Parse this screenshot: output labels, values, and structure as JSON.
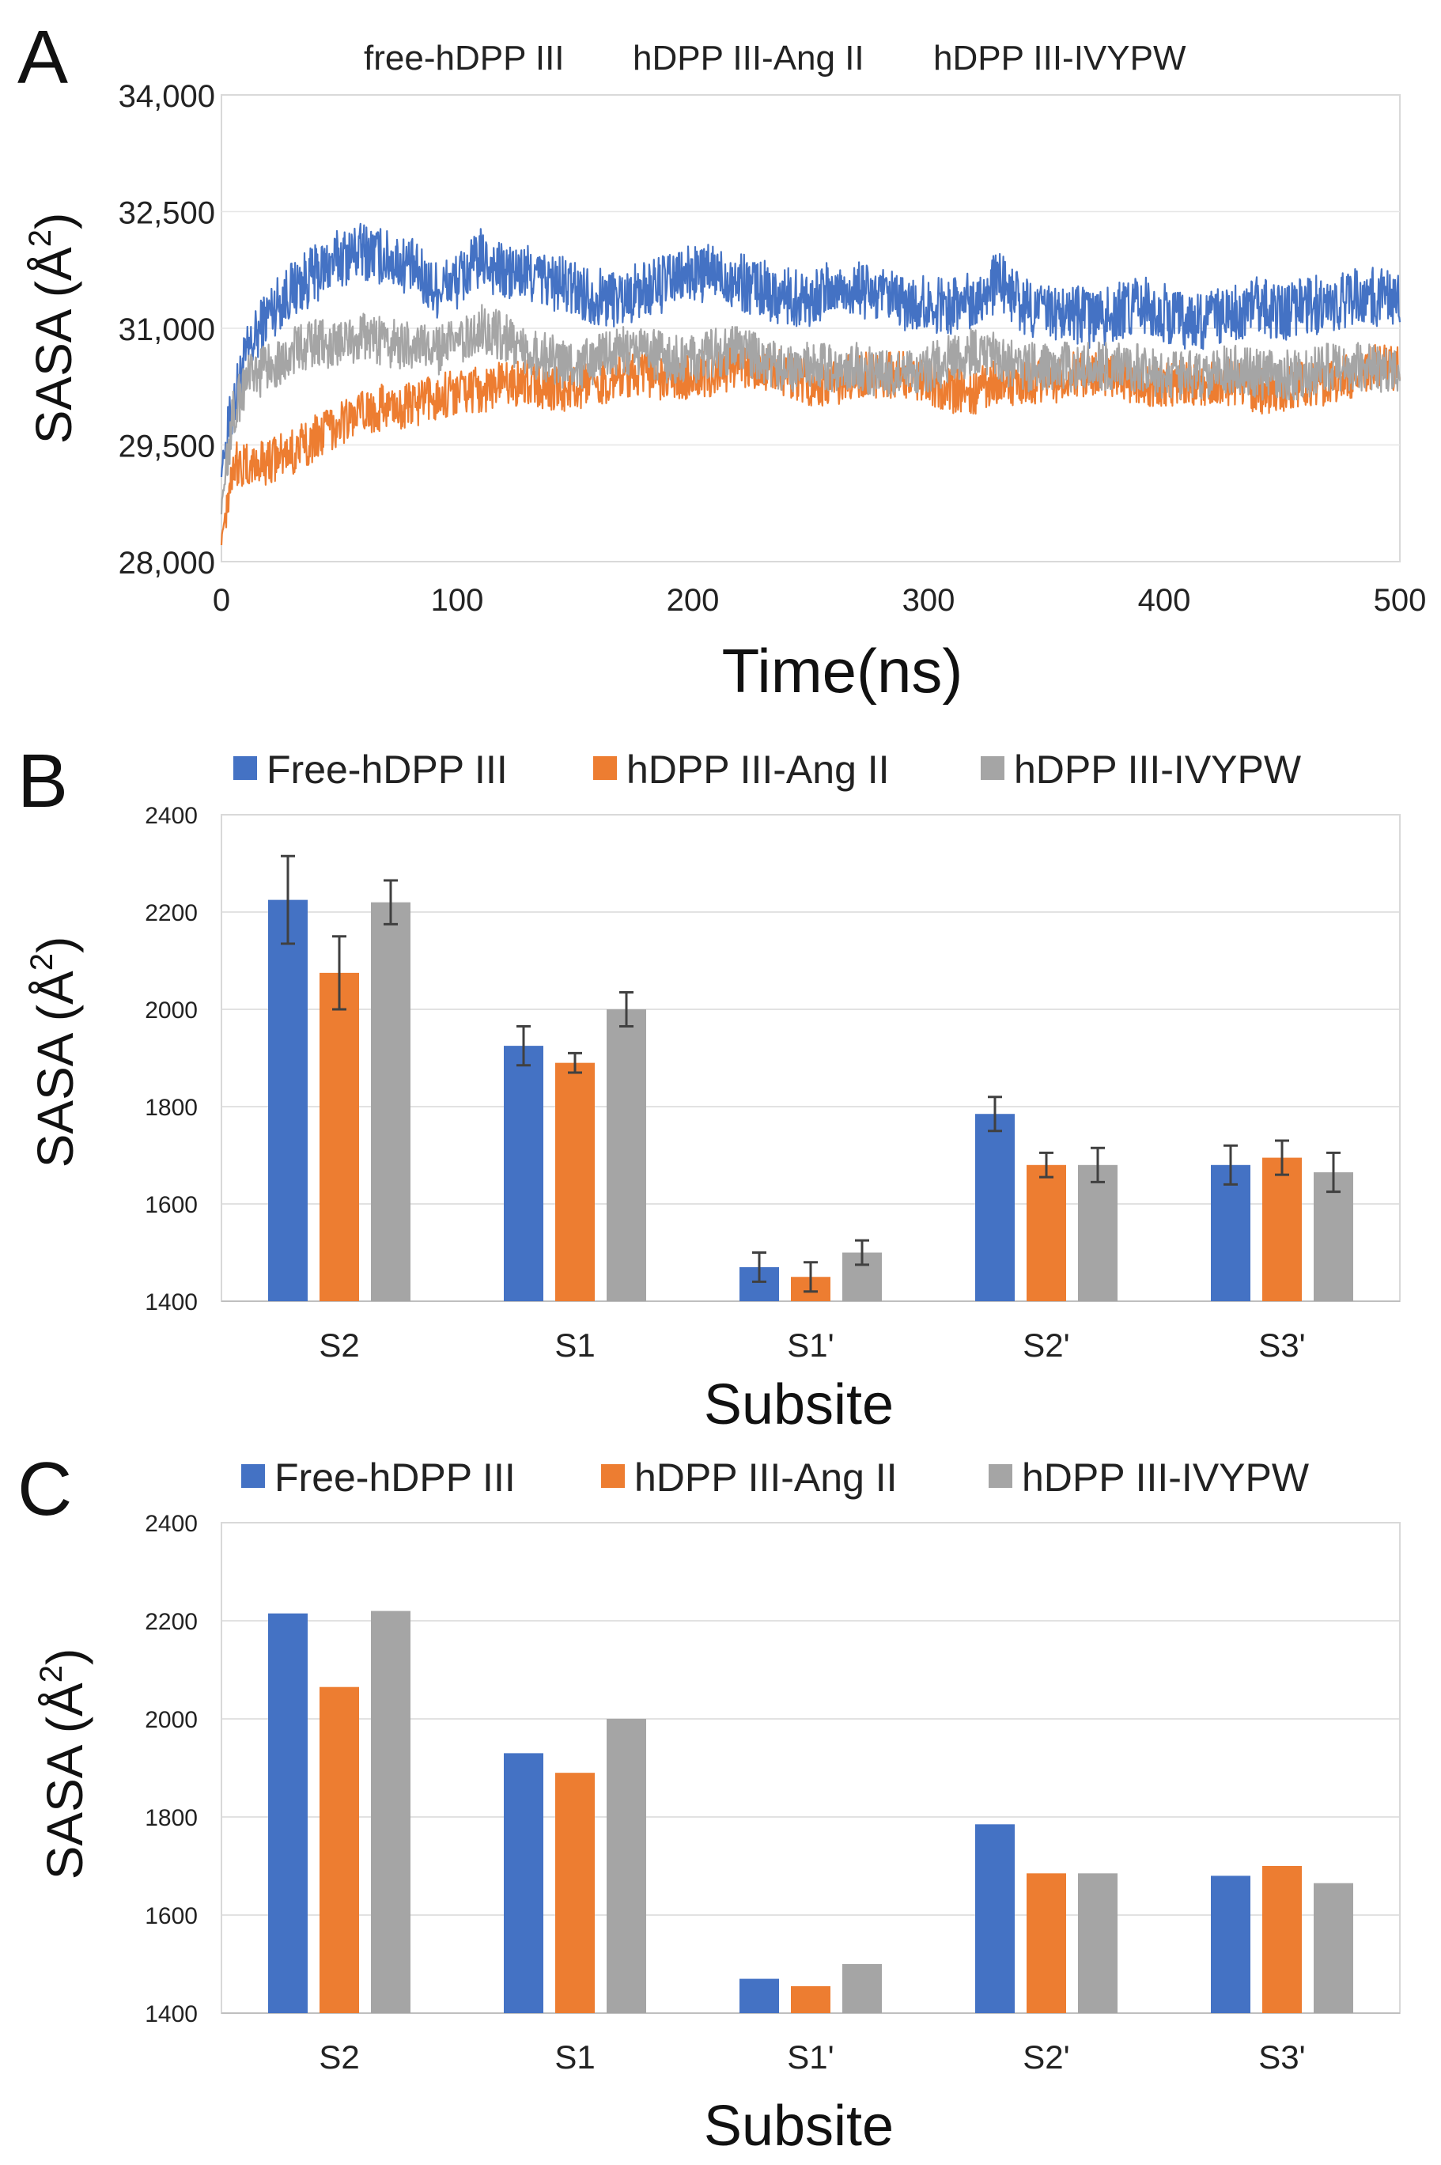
{
  "chart_data": [
    {
      "panel": "A",
      "type": "line",
      "title": "",
      "xlabel": "Time(ns)",
      "ylabel": "SASA (Å²)",
      "ylabel_main": "SASA (Å",
      "ylabel_sup": "2",
      "ylabel_close": ")",
      "xlim": [
        0,
        500
      ],
      "ylim": [
        28000,
        34000
      ],
      "xticks": [
        0,
        100,
        200,
        300,
        400,
        500
      ],
      "yticks": [
        28000,
        29500,
        31000,
        32500,
        34000
      ],
      "ytick_labels": [
        "28,000",
        "29,500",
        "31,000",
        "32,500",
        "34,000"
      ],
      "legend": [
        "free-hDPP III",
        "hDPP III-Ang II",
        "hDPP III-IVYPW"
      ],
      "series": [
        {
          "name": "free-hDPP III",
          "color": "#4472C4",
          "x": [
            0,
            5,
            10,
            20,
            30,
            40,
            50,
            60,
            70,
            80,
            90,
            100,
            110,
            120,
            130,
            140,
            150,
            160,
            170,
            180,
            190,
            200,
            210,
            220,
            230,
            240,
            250,
            260,
            270,
            280,
            290,
            300,
            310,
            320,
            330,
            340,
            350,
            360,
            370,
            380,
            390,
            400,
            410,
            420,
            430,
            440,
            450,
            460,
            470,
            480,
            490,
            500
          ],
          "y": [
            29200,
            30000,
            30600,
            31200,
            31500,
            31700,
            31900,
            32000,
            31900,
            31800,
            31500,
            31600,
            31900,
            31700,
            31700,
            31600,
            31500,
            31400,
            31400,
            31500,
            31600,
            31700,
            31700,
            31600,
            31500,
            31400,
            31400,
            31500,
            31500,
            31400,
            31300,
            31300,
            31300,
            31400,
            31600,
            31300,
            31200,
            31200,
            31100,
            31200,
            31300,
            31200,
            31100,
            31100,
            31200,
            31300,
            31200,
            31300,
            31300,
            31400,
            31400,
            31400
          ]
        },
        {
          "name": "hDPP III-Ang II",
          "color": "#ED7D31",
          "x": [
            0,
            5,
            10,
            20,
            30,
            40,
            50,
            60,
            70,
            80,
            90,
            100,
            110,
            120,
            130,
            140,
            150,
            160,
            170,
            180,
            190,
            200,
            210,
            220,
            230,
            240,
            250,
            260,
            270,
            280,
            290,
            300,
            310,
            320,
            330,
            340,
            350,
            360,
            370,
            380,
            390,
            400,
            410,
            420,
            430,
            440,
            450,
            460,
            470,
            480,
            490,
            500
          ],
          "y": [
            28300,
            29300,
            29200,
            29300,
            29400,
            29600,
            29800,
            29900,
            30000,
            30000,
            30100,
            30200,
            30200,
            30300,
            30300,
            30200,
            30200,
            30300,
            30400,
            30400,
            30300,
            30400,
            30400,
            30500,
            30500,
            30400,
            30300,
            30300,
            30400,
            30400,
            30400,
            30300,
            30200,
            30200,
            30300,
            30300,
            30300,
            30400,
            30400,
            30400,
            30300,
            30300,
            30300,
            30300,
            30300,
            30200,
            30200,
            30300,
            30300,
            30400,
            30500,
            30500
          ]
        },
        {
          "name": "hDPP III-IVYPW",
          "color": "#A5A5A5",
          "x": [
            0,
            5,
            10,
            20,
            30,
            40,
            50,
            60,
            70,
            80,
            90,
            100,
            110,
            120,
            130,
            140,
            150,
            160,
            170,
            180,
            190,
            200,
            210,
            220,
            230,
            240,
            250,
            260,
            270,
            280,
            290,
            300,
            310,
            320,
            330,
            340,
            350,
            360,
            370,
            380,
            390,
            400,
            410,
            420,
            430,
            440,
            450,
            460,
            470,
            480,
            490,
            500
          ],
          "y": [
            28700,
            29900,
            30300,
            30500,
            30700,
            30800,
            30800,
            30900,
            30800,
            30800,
            30700,
            30800,
            31000,
            30900,
            30700,
            30600,
            30500,
            30600,
            30700,
            30700,
            30600,
            30600,
            30700,
            30700,
            30600,
            30500,
            30500,
            30500,
            30500,
            30400,
            30400,
            30500,
            30600,
            30700,
            30600,
            30500,
            30500,
            30500,
            30500,
            30500,
            30500,
            30400,
            30400,
            30400,
            30500,
            30400,
            30400,
            30400,
            30500,
            30500,
            30500,
            30400
          ]
        }
      ]
    },
    {
      "panel": "B",
      "type": "bar",
      "title": "",
      "xlabel": "Subsite",
      "ylabel": "SASA (Å²)",
      "ylabel_main": "SASA (Å",
      "ylabel_sup": "2",
      "ylabel_close": ")",
      "categories": [
        "S2",
        "S1",
        "S1'",
        "S2'",
        "S3'"
      ],
      "ylim": [
        1400,
        2400
      ],
      "yticks": [
        1400,
        1600,
        1800,
        2000,
        2200,
        2400
      ],
      "ytick_labels": [
        "1400",
        "1600",
        "1800",
        "2000",
        "2200",
        "2400"
      ],
      "legend": [
        "Free-hDPP III",
        "hDPP III-Ang II",
        "hDPP III-IVYPW"
      ],
      "series": [
        {
          "name": "Free-hDPP III",
          "color": "#4472C4",
          "values": [
            2225,
            1925,
            1470,
            1785,
            1680
          ],
          "errors": [
            90,
            40,
            30,
            35,
            40
          ]
        },
        {
          "name": "hDPP III-Ang II",
          "color": "#ED7D31",
          "values": [
            2075,
            1890,
            1450,
            1680,
            1695
          ],
          "errors": [
            75,
            20,
            30,
            25,
            35
          ]
        },
        {
          "name": "hDPP III-IVYPW",
          "color": "#A5A5A5",
          "values": [
            2220,
            2000,
            1500,
            1680,
            1665
          ],
          "errors": [
            45,
            35,
            25,
            35,
            40
          ]
        }
      ]
    },
    {
      "panel": "C",
      "type": "bar",
      "title": "",
      "xlabel": "Subsite",
      "ylabel": "SASA (Å²)",
      "ylabel_main": "SASA (Å",
      "ylabel_sup": "2",
      "ylabel_close": ")",
      "categories": [
        "S2",
        "S1",
        "S1'",
        "S2'",
        "S3'"
      ],
      "ylim": [
        1400,
        2400
      ],
      "yticks": [
        1400,
        1600,
        1800,
        2000,
        2200,
        2400
      ],
      "ytick_labels": [
        "1400",
        "1600",
        "1800",
        "2000",
        "2200",
        "2400"
      ],
      "legend": [
        "Free-hDPP III",
        "hDPP III-Ang II",
        "hDPP III-IVYPW"
      ],
      "series": [
        {
          "name": "Free-hDPP III",
          "color": "#4472C4",
          "values": [
            2215,
            1930,
            1470,
            1785,
            1680
          ]
        },
        {
          "name": "hDPP III-Ang II",
          "color": "#ED7D31",
          "values": [
            2065,
            1890,
            1455,
            1685,
            1700
          ]
        },
        {
          "name": "hDPP III-IVYPW",
          "color": "#A5A5A5",
          "values": [
            2220,
            2000,
            1500,
            1685,
            1665
          ]
        }
      ]
    }
  ]
}
